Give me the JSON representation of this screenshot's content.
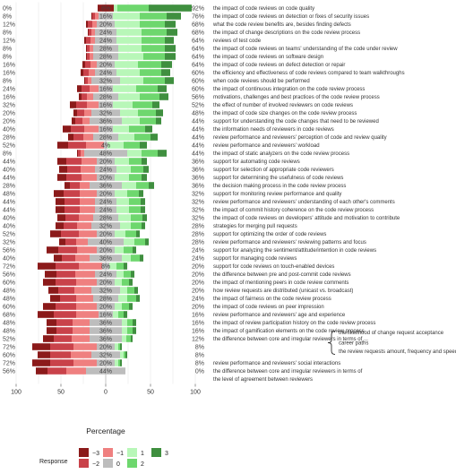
{
  "chart_data": {
    "type": "bar",
    "orientation": "horizontal-diverging",
    "xlabel": "Percentage",
    "xticks": [
      "100",
      "50",
      "0",
      "50",
      "100"
    ],
    "xlim": [
      -100,
      100
    ],
    "legend": {
      "title": "Response",
      "placement": "bottom-left",
      "levels": [
        "-3",
        "-2",
        "-1",
        "0",
        "1",
        "2",
        "3"
      ]
    },
    "colors": {
      "-3": "#8b1a1a",
      "-2": "#c9424a",
      "-1": "#ef8080",
      "0": "#bdbdbd",
      "1": "#b8f7b8",
      "2": "#6ed76e",
      "3": "#3f8f3f",
      "header_fill": "#8b1a1a",
      "header_text": "#ffffff"
    },
    "rows": [
      {
        "label": "the impact of code reviews on code quality",
        "left_pct": "0%",
        "mid_pct": "8%",
        "right_pct": "92%",
        "values": [
          0,
          0,
          0,
          8,
          9,
          35,
          48
        ]
      },
      {
        "label": "the impact of code reviews on detection or fixes of security issues",
        "left_pct": "8%",
        "mid_pct": "16%",
        "right_pct": "76%",
        "values": [
          1,
          3,
          4,
          16,
          30,
          30,
          16
        ]
      },
      {
        "label": "what the code review benefits are, besides finding defects",
        "left_pct": "12%",
        "mid_pct": "20%",
        "right_pct": "68%",
        "values": [
          2,
          5,
          5,
          20,
          28,
          28,
          12
        ]
      },
      {
        "label": "the impact of change descriptions on the code review process",
        "left_pct": "8%",
        "mid_pct": "24%",
        "right_pct": "68%",
        "values": [
          1,
          3,
          4,
          24,
          28,
          28,
          12
        ]
      },
      {
        "label": "reviews of test code",
        "left_pct": "12%",
        "mid_pct": "24%",
        "right_pct": "64%",
        "values": [
          2,
          5,
          5,
          24,
          28,
          26,
          10
        ]
      },
      {
        "label": "the impact of code reviews on teams' understanding of the code under review",
        "left_pct": "8%",
        "mid_pct": "28%",
        "right_pct": "64%",
        "values": [
          1,
          3,
          4,
          28,
          26,
          26,
          12
        ]
      },
      {
        "label": "the impact of code reviews on software design",
        "left_pct": "8%",
        "mid_pct": "28%",
        "right_pct": "64%",
        "values": [
          1,
          3,
          4,
          28,
          28,
          24,
          12
        ]
      },
      {
        "label": "the impact of code reviews on defect detection or repair",
        "left_pct": "16%",
        "mid_pct": "20%",
        "right_pct": "64%",
        "values": [
          3,
          6,
          7,
          20,
          26,
          26,
          12
        ]
      },
      {
        "label": "the efficiency and effectiveness of code reviews compared to team walkthroughs",
        "left_pct": "16%",
        "mid_pct": "24%",
        "right_pct": "60%",
        "values": [
          3,
          6,
          7,
          24,
          26,
          24,
          10
        ]
      },
      {
        "label": "when code reviews should be performed",
        "left_pct": "8%",
        "mid_pct": "32%",
        "right_pct": "60%",
        "values": [
          1,
          3,
          4,
          32,
          26,
          24,
          10
        ]
      },
      {
        "label": "the impact of continuous integration on the code review process",
        "left_pct": "24%",
        "mid_pct": "16%",
        "right_pct": "60%",
        "values": [
          5,
          9,
          10,
          16,
          26,
          24,
          10
        ]
      },
      {
        "label": "motivations, challenges and best practices of the code review process",
        "left_pct": "16%",
        "mid_pct": "28%",
        "right_pct": "56%",
        "values": [
          3,
          6,
          7,
          28,
          24,
          22,
          10
        ]
      },
      {
        "label": "the effect of number of involved reviewers on code reviews",
        "left_pct": "32%",
        "mid_pct": "16%",
        "right_pct": "52%",
        "values": [
          7,
          12,
          13,
          16,
          22,
          22,
          8
        ]
      },
      {
        "label": "the impact of code size changes on the code review process",
        "left_pct": "20%",
        "mid_pct": "32%",
        "right_pct": "48%",
        "values": [
          4,
          8,
          8,
          32,
          20,
          20,
          8
        ]
      },
      {
        "label": "support for understanding the code changes that need to be reviewed",
        "left_pct": "20%",
        "mid_pct": "36%",
        "right_pct": "44%",
        "values": [
          4,
          8,
          8,
          36,
          20,
          18,
          6
        ]
      },
      {
        "label": "the information needs of reviewers in code reviews",
        "left_pct": "40%",
        "mid_pct": "16%",
        "right_pct": "44%",
        "values": [
          9,
          15,
          16,
          16,
          18,
          18,
          8
        ]
      },
      {
        "label": "review performance and reviewers' perception of code and review quality",
        "left_pct": "28%",
        "mid_pct": "28%",
        "right_pct": "44%",
        "values": [
          6,
          11,
          11,
          28,
          18,
          18,
          8
        ]
      },
      {
        "label": "review performance and reviewers' workload",
        "left_pct": "52%",
        "mid_pct": "4%",
        "right_pct": "44%",
        "values": [
          12,
          20,
          20,
          4,
          18,
          18,
          8
        ]
      },
      {
        "label": "the impact of static analyzers on the code review process",
        "left_pct": "8%",
        "mid_pct": "48%",
        "right_pct": "44%",
        "values": [
          1,
          3,
          4,
          48,
          16,
          18,
          10
        ]
      },
      {
        "label": "support for automating code reviews",
        "left_pct": "44%",
        "mid_pct": "20%",
        "right_pct": "36%",
        "values": [
          10,
          17,
          17,
          20,
          16,
          14,
          6
        ]
      },
      {
        "label": "support for selection of appropriate code reviewers",
        "left_pct": "40%",
        "mid_pct": "24%",
        "right_pct": "36%",
        "values": [
          9,
          15,
          16,
          24,
          16,
          14,
          6
        ]
      },
      {
        "label": "support for determining the usefulness of code reviews",
        "left_pct": "44%",
        "mid_pct": "20%",
        "right_pct": "36%",
        "values": [
          10,
          17,
          17,
          20,
          16,
          14,
          6
        ]
      },
      {
        "label": "the decision making process in the code review process",
        "left_pct": "28%",
        "mid_pct": "36%",
        "right_pct": "36%",
        "values": [
          6,
          11,
          11,
          36,
          16,
          14,
          6
        ]
      },
      {
        "label": "support for monitoring review performance and quality",
        "left_pct": "48%",
        "mid_pct": "20%",
        "right_pct": "32%",
        "values": [
          11,
          18,
          19,
          20,
          14,
          13,
          5
        ]
      },
      {
        "label": "review performance and reviewers' understanding of each other's comments",
        "left_pct": "44%",
        "mid_pct": "24%",
        "right_pct": "32%",
        "values": [
          10,
          17,
          17,
          24,
          14,
          13,
          5
        ]
      },
      {
        "label": "the impact of commit history coherence on the code review process",
        "left_pct": "44%",
        "mid_pct": "24%",
        "right_pct": "32%",
        "values": [
          10,
          17,
          17,
          24,
          14,
          13,
          5
        ]
      },
      {
        "label": "the impact of code reviews on developers' attitude and motivation to contribute",
        "left_pct": "40%",
        "mid_pct": "28%",
        "right_pct": "32%",
        "values": [
          9,
          15,
          16,
          28,
          14,
          13,
          5
        ]
      },
      {
        "label": "strategies for merging pull requests",
        "left_pct": "40%",
        "mid_pct": "32%",
        "right_pct": "28%",
        "values": [
          9,
          15,
          16,
          32,
          12,
          12,
          4
        ]
      },
      {
        "label": "support for optimizing the order of code reviews",
        "left_pct": "52%",
        "mid_pct": "20%",
        "right_pct": "28%",
        "values": [
          12,
          20,
          20,
          20,
          12,
          12,
          4
        ]
      },
      {
        "label": "review performance and reviewers' reviewing patterns and focus",
        "left_pct": "32%",
        "mid_pct": "40%",
        "right_pct": "28%",
        "values": [
          7,
          12,
          13,
          40,
          12,
          12,
          4
        ]
      },
      {
        "label": "support for analyzing the sentiment/attitude/intention in code reviews",
        "left_pct": "56%",
        "mid_pct": "20%",
        "right_pct": "24%",
        "values": [
          13,
          21,
          22,
          20,
          10,
          10,
          4
        ]
      },
      {
        "label": "support for managing code reviews",
        "left_pct": "40%",
        "mid_pct": "36%",
        "right_pct": "24%",
        "values": [
          9,
          15,
          16,
          36,
          10,
          10,
          4
        ]
      },
      {
        "label": "support for code reviews on touch-enabled devices",
        "left_pct": "72%",
        "mid_pct": "8%",
        "right_pct": "20%",
        "values": [
          20,
          26,
          26,
          8,
          8,
          8,
          4
        ]
      },
      {
        "label": "the difference between pre and post-commit code reviews",
        "left_pct": "56%",
        "mid_pct": "24%",
        "right_pct": "20%",
        "values": [
          13,
          21,
          22,
          24,
          8,
          8,
          4
        ]
      },
      {
        "label": "the impact of mentioning peers in code review comments",
        "left_pct": "60%",
        "mid_pct": "20%",
        "right_pct": "20%",
        "values": [
          14,
          23,
          23,
          20,
          8,
          8,
          4
        ]
      },
      {
        "label": "how review requests are distributed (unicast vs. broadcast)",
        "left_pct": "48%",
        "mid_pct": "32%",
        "right_pct": "20%",
        "values": [
          11,
          18,
          19,
          32,
          8,
          8,
          4
        ]
      },
      {
        "label": "the impact of fairness on the code review process",
        "left_pct": "48%",
        "mid_pct": "28%",
        "right_pct": "24%",
        "values": [
          11,
          18,
          19,
          28,
          10,
          10,
          4
        ]
      },
      {
        "label": "the impact of code reviews on peer impression",
        "left_pct": "60%",
        "mid_pct": "20%",
        "right_pct": "20%",
        "values": [
          14,
          23,
          23,
          20,
          8,
          8,
          4
        ]
      },
      {
        "label": "review performance and reviewers' age and experience",
        "left_pct": "68%",
        "mid_pct": "16%",
        "right_pct": "16%",
        "values": [
          18,
          25,
          25,
          16,
          6,
          6,
          4
        ]
      },
      {
        "label": "the impact of review participation history on the code review process",
        "left_pct": "48%",
        "mid_pct": "36%",
        "right_pct": "16%",
        "values": [
          11,
          18,
          19,
          36,
          6,
          6,
          4
        ]
      },
      {
        "label": "the impact of gamification elements on the code review process",
        "left_pct": "48%",
        "mid_pct": "36%",
        "right_pct": "16%",
        "values": [
          11,
          18,
          19,
          36,
          6,
          6,
          4
        ]
      },
      {
        "label": "the difference between core and irregular reviewers in terms of ...",
        "left_pct": "52%",
        "mid_pct": "36%",
        "right_pct": "12%",
        "values": [
          12,
          20,
          20,
          36,
          5,
          5,
          2
        ]
      },
      {
        "label": "",
        "left_pct": "72%",
        "mid_pct": "20%",
        "right_pct": "8%",
        "values": [
          20,
          26,
          26,
          20,
          4,
          2,
          2
        ]
      },
      {
        "label": "",
        "left_pct": "60%",
        "mid_pct": "32%",
        "right_pct": "8%",
        "values": [
          14,
          23,
          23,
          32,
          4,
          2,
          2
        ]
      },
      {
        "label": "review performance and reviewers' social interactions",
        "left_pct": "72%",
        "mid_pct": "20%",
        "right_pct": "8%",
        "values": [
          20,
          26,
          26,
          20,
          4,
          2,
          2
        ]
      },
      {
        "label": "the difference between core and irregular reviewers in terms of",
        "left_pct": "56%",
        "mid_pct": "44%",
        "right_pct": "0%",
        "values": [
          13,
          21,
          22,
          44,
          0,
          0,
          0
        ]
      },
      {
        "label": "the level of agreement between reviewers",
        "left_pct": "",
        "mid_pct": "",
        "right_pct": "",
        "values": [
          0,
          0,
          0,
          0,
          0,
          0,
          0
        ]
      }
    ],
    "brace": {
      "sub_items": [
        "the likelihood of change request acceptance",
        "career paths",
        "the review requests amount, frequency and speed"
      ]
    }
  }
}
